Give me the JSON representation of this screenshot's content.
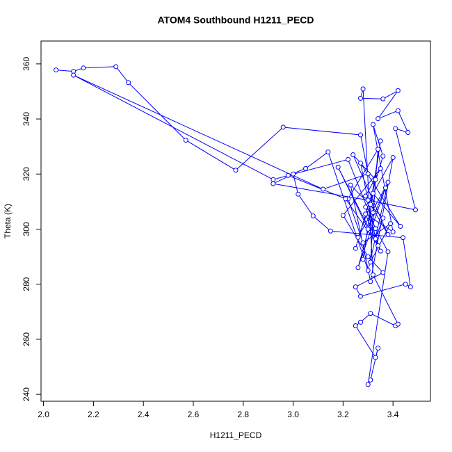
{
  "chart_data": {
    "type": "line",
    "markers": "open-circle",
    "title": "ATOM4 Southbound H1211_PECD",
    "x_label": "H1211_PECD",
    "y_label": "Theta (K)",
    "color": "#0000ff",
    "x": [
      2.05,
      2.12,
      2.16,
      2.29,
      2.34,
      2.57,
      2.77,
      2.96,
      3.27,
      3.3,
      3.12,
      2.12,
      2.92,
      3.22,
      3.33,
      3.38,
      3.3,
      3.31,
      3.34,
      3.33,
      3.25,
      3.27,
      3.31,
      3.41,
      3.42,
      3.32,
      3.28,
      3.27,
      3.36,
      3.42,
      3.34,
      3.42,
      3.46,
      3.41,
      3.49,
      3.3,
      2.92,
      3.0,
      3.02,
      3.08,
      3.15,
      3.44,
      3.47,
      3.45,
      3.27,
      3.25,
      3.36,
      3.3,
      3.2,
      3.35,
      3.29,
      3.38,
      3.24,
      3.33,
      3.31,
      3.39,
      3.28,
      3.22,
      3.34,
      3.32,
      3.26,
      3.37,
      3.3,
      3.18,
      3.35,
      3.29,
      3.4,
      3.31,
      3.23,
      3.36,
      3.33,
      3.27,
      3.43,
      3.32,
      3.28,
      3.35,
      3.31,
      3.26,
      3.38,
      3.3,
      3.14,
      3.05,
      2.98,
      3.21,
      3.34,
      3.29,
      3.4,
      3.32,
      3.36,
      3.25
    ],
    "values": [
      357.8,
      357.3,
      358.5,
      359.0,
      353.2,
      332.3,
      321.4,
      337.0,
      334.2,
      320.1,
      314.5,
      355.9,
      318.0,
      325.3,
      300.2,
      291.8,
      243.6,
      245.2,
      256.8,
      253.4,
      264.9,
      266.2,
      269.4,
      264.9,
      265.5,
      283.4,
      350.9,
      347.5,
      347.3,
      350.3,
      340.1,
      343.0,
      335.1,
      336.5,
      307.0,
      310.5,
      316.5,
      320.0,
      312.7,
      304.8,
      299.3,
      296.9,
      279.0,
      280.0,
      275.6,
      279.0,
      284.2,
      290.0,
      305.0,
      322.0,
      312.0,
      298.0,
      327.0,
      318.0,
      288.0,
      302.0,
      295.0,
      311.0,
      329.0,
      306.0,
      286.0,
      315.0,
      300.0,
      322.5,
      292.0,
      308.0,
      326.0,
      281.0,
      316.0,
      304.0,
      296.5,
      324.0,
      301.0,
      313.0,
      289.0,
      332.0,
      309.0,
      297.0,
      317.0,
      285.0,
      328.0,
      322.0,
      319.5,
      311.0,
      294.0,
      305.5,
      299.0,
      338.0,
      326.5,
      293.0
    ],
    "xlim": [
      1.99,
      3.55
    ],
    "ylim": [
      237.5,
      368.3
    ],
    "xticks": [
      {
        "value": 2,
        "label": "2.0"
      },
      {
        "value": 2.2,
        "label": "2.2"
      },
      {
        "value": 2.4,
        "label": "2.4"
      },
      {
        "value": 2.6,
        "label": "2.6"
      },
      {
        "value": 2.8,
        "label": "2.8"
      },
      {
        "value": 3,
        "label": "3.0"
      },
      {
        "value": 3.2,
        "label": "3.2"
      },
      {
        "value": 3.4,
        "label": "3.4"
      }
    ],
    "yticks": [
      240,
      260,
      280,
      300,
      320,
      340,
      360
    ]
  }
}
